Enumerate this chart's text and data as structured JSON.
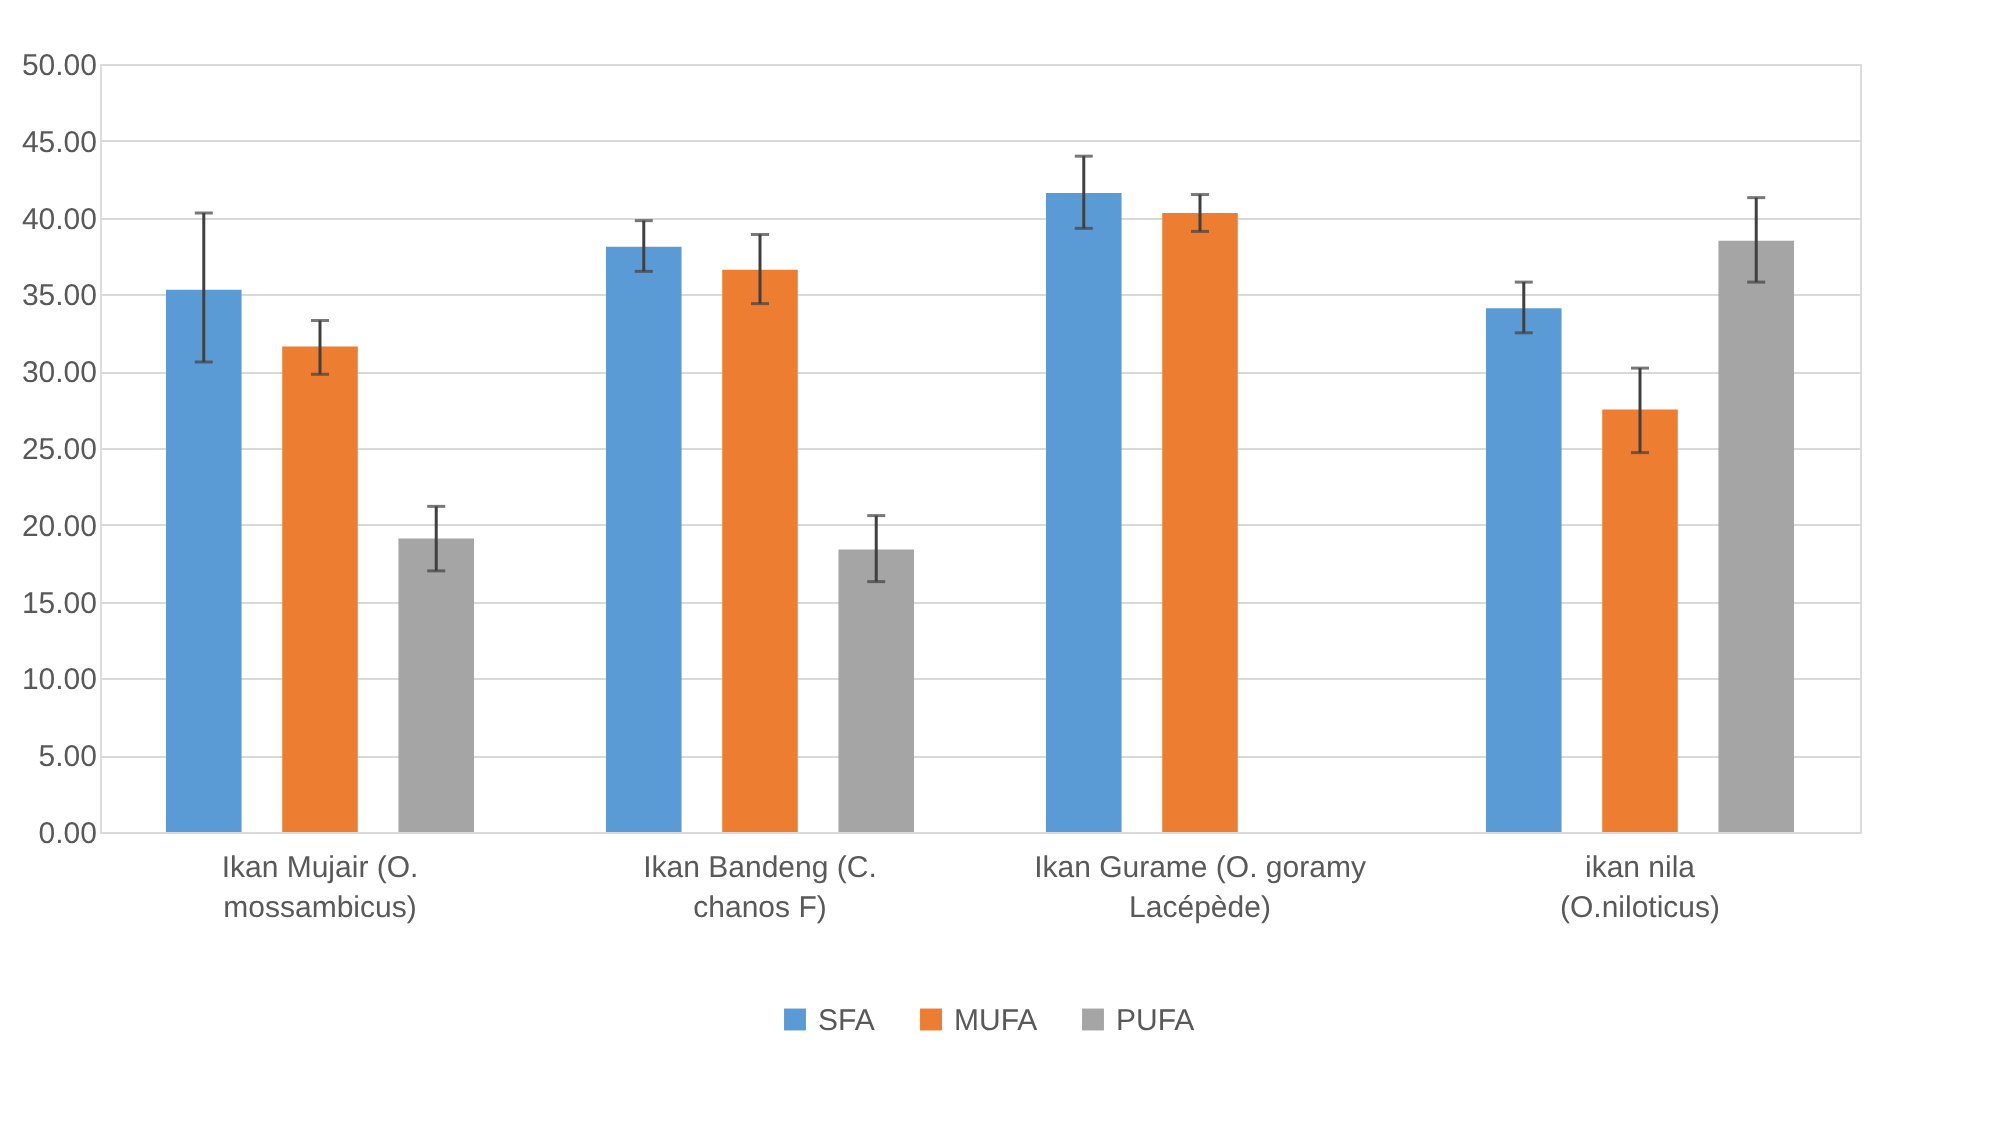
{
  "chart_data": {
    "type": "bar",
    "categories": [
      "Ikan Mujair (O. mossambicus)",
      "Ikan Bandeng (C. chanos F)",
      "Ikan Gurame (O. goramy Lacépède)",
      "ikan nila (O.niloticus)"
    ],
    "series": [
      {
        "name": "SFA",
        "color": "#5b9bd5",
        "values": [
          35.3,
          38.1,
          41.6,
          34.1
        ],
        "errors": [
          [
            30.6,
            40.3
          ],
          [
            36.5,
            39.8
          ],
          [
            39.3,
            44.0
          ],
          [
            32.5,
            35.8
          ]
        ]
      },
      {
        "name": "MUFA",
        "color": "#ed7d31",
        "values": [
          31.6,
          36.6,
          40.3,
          27.5
        ],
        "errors": [
          [
            29.8,
            33.3
          ],
          [
            34.4,
            38.9
          ],
          [
            39.1,
            41.5
          ],
          [
            24.7,
            30.2
          ]
        ]
      },
      {
        "name": "PUFA",
        "color": "#a5a5a5",
        "values": [
          19.1,
          18.4,
          null,
          38.5
        ],
        "errors": [
          [
            17.0,
            21.2
          ],
          [
            16.3,
            20.6
          ],
          null,
          [
            35.8,
            41.3
          ]
        ]
      }
    ],
    "ylim": [
      0,
      50
    ],
    "yticks": [
      {
        "value": 0,
        "label": "0.00"
      },
      {
        "value": 5,
        "label": "5.00"
      },
      {
        "value": 10,
        "label": "10.00"
      },
      {
        "value": 15,
        "label": "15.00"
      },
      {
        "value": 20,
        "label": "20.00"
      },
      {
        "value": 25,
        "label": "25.00"
      },
      {
        "value": 30,
        "label": "30.00"
      },
      {
        "value": 35,
        "label": "35.00"
      },
      {
        "value": 40,
        "label": "40.00"
      },
      {
        "value": 45,
        "label": "45.00"
      },
      {
        "value": 50,
        "label": "50.00"
      }
    ],
    "grid": "y",
    "legend": "bottom"
  }
}
